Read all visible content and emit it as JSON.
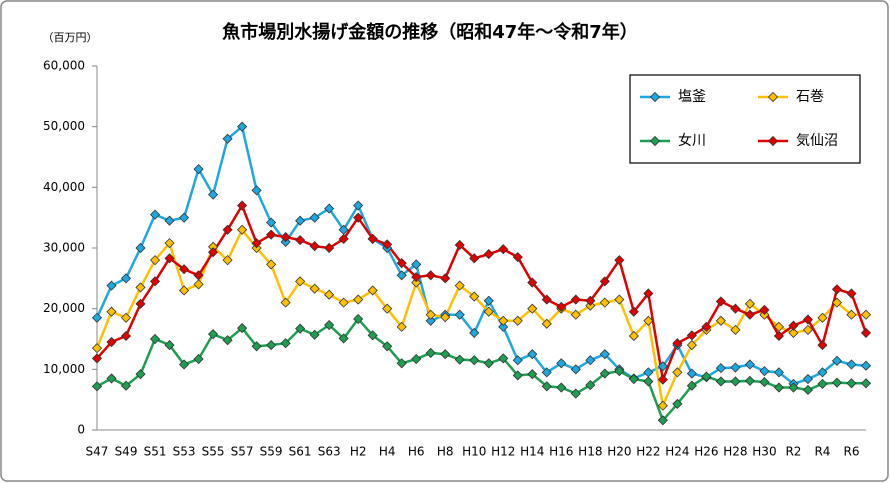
{
  "chart_data": {
    "type": "line",
    "title": "魚市場別水揚げ金額の推移（昭和47年～令和7年）",
    "y_axis_label": "（百万円）",
    "categories": [
      "S47",
      null,
      "S49",
      null,
      "S51",
      null,
      "S53",
      null,
      "S55",
      null,
      "S57",
      null,
      "S59",
      null,
      "S61",
      null,
      "S63",
      null,
      "H2",
      null,
      "H4",
      null,
      "H6",
      null,
      "H8",
      null,
      "H10",
      null,
      "H12",
      null,
      "H14",
      null,
      "H16",
      null,
      "H18",
      null,
      "H20",
      null,
      "H22",
      null,
      "H24",
      null,
      "H26",
      null,
      "H28",
      null,
      "H30",
      null,
      "R2",
      null,
      "R4",
      null,
      "R6",
      null
    ],
    "series": [
      {
        "name": "塩釜",
        "color": "#1ea8e0",
        "values": [
          18500,
          23800,
          25000,
          30000,
          35500,
          34500,
          35000,
          43000,
          38800,
          48000,
          50000,
          39500,
          34200,
          31000,
          34500,
          35000,
          36500,
          33000,
          37000,
          31500,
          30000,
          25500,
          27300,
          18000,
          19000,
          19000,
          16000,
          21300,
          17000,
          11500,
          12500,
          9500,
          11000,
          10000,
          11500,
          12500,
          10000,
          8500,
          9500,
          10500,
          14000,
          9300,
          8700,
          10200,
          10300,
          10800,
          9700,
          9500,
          7600,
          8400,
          9500,
          11400,
          10800,
          10600
        ]
      },
      {
        "name": "石巻",
        "color": "#ffc000",
        "values": [
          13500,
          19500,
          18500,
          23500,
          28000,
          30800,
          23000,
          24000,
          30200,
          28000,
          33000,
          30000,
          27300,
          21000,
          24500,
          23300,
          22300,
          21000,
          21500,
          23000,
          20000,
          17000,
          24300,
          19000,
          18600,
          23800,
          22000,
          19500,
          18000,
          18000,
          20000,
          17500,
          20000,
          19000,
          20500,
          21000,
          21500,
          15500,
          18000,
          4000,
          9500,
          14000,
          16500,
          18000,
          16500,
          20800,
          19000,
          17000,
          16000,
          16500,
          18500,
          21000,
          19000,
          19000
        ]
      },
      {
        "name": "女川",
        "color": "#1e9e50",
        "values": [
          7200,
          8500,
          7300,
          9200,
          15000,
          14000,
          10800,
          11700,
          15800,
          14800,
          16800,
          13800,
          14000,
          14300,
          16700,
          15700,
          17300,
          15100,
          18300,
          15600,
          13800,
          11000,
          11700,
          12700,
          12500,
          11600,
          11500,
          11000,
          11800,
          9000,
          9200,
          7200,
          7000,
          6000,
          7400,
          9300,
          9700,
          8400,
          8000,
          1600,
          4300,
          7300,
          8800,
          8000,
          8000,
          8100,
          7900,
          7000,
          7000,
          6600,
          7600,
          7800,
          7700,
          7700
        ]
      },
      {
        "name": "気仙沼",
        "color": "#e00000",
        "values": [
          11800,
          14500,
          15500,
          20800,
          24500,
          28300,
          26500,
          25500,
          29300,
          33000,
          37000,
          30800,
          32200,
          31800,
          31300,
          30300,
          30000,
          31500,
          35000,
          31500,
          30600,
          27500,
          25200,
          25500,
          25000,
          30500,
          28300,
          29000,
          29800,
          28500,
          24300,
          21500,
          20300,
          21500,
          21300,
          24500,
          28000,
          19500,
          22500,
          8300,
          14300,
          15600,
          17000,
          21200,
          20000,
          19000,
          19800,
          15500,
          17200,
          18200,
          14000,
          23200,
          22500,
          16000
        ]
      }
    ],
    "ylim": [
      0,
      60000
    ],
    "yticks": [
      0,
      {
        "value": 10000,
        "label": "10,000"
      },
      {
        "value": 20000,
        "label": "20,000"
      },
      {
        "value": 30000,
        "label": "30,000"
      },
      {
        "value": 40000,
        "label": "40,000"
      },
      {
        "value": 50000,
        "label": "50,000"
      },
      {
        "value": 60000,
        "label": "60,000"
      }
    ],
    "grid": false,
    "legend": "top-right"
  }
}
